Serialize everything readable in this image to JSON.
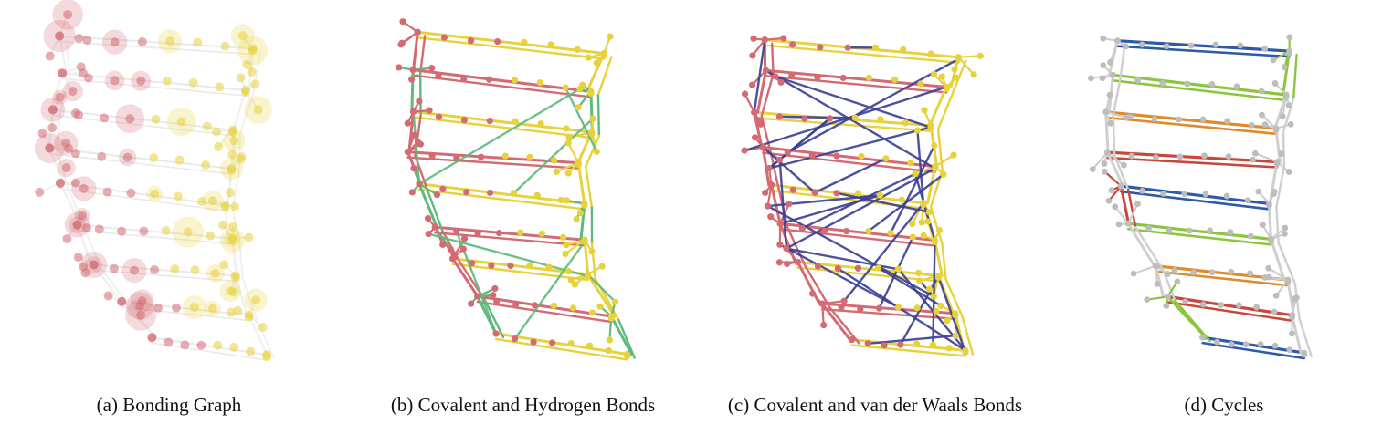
{
  "figure": {
    "panels": [
      {
        "id": "a",
        "caption": "(a)  Bonding Graph"
      },
      {
        "id": "b",
        "caption": "(b)  Covalent and Hydrogen Bonds"
      },
      {
        "id": "c",
        "caption": "(c)  Covalent and van der Waals Bonds"
      },
      {
        "id": "d",
        "caption": "(d)  Cycles"
      }
    ],
    "colors": {
      "strand_red": "#d46a72",
      "strand_yellow": "#e8d23c",
      "hydrogen_green": "#5fba7d",
      "vdw_blue": "#3a3f93",
      "cycle_gray": "#d8d8d8",
      "cycle_blue": "#2f5aa8",
      "cycle_green": "#8cc63f",
      "cycle_orange": "#e08a2c",
      "cycle_red": "#c8463c"
    }
  }
}
